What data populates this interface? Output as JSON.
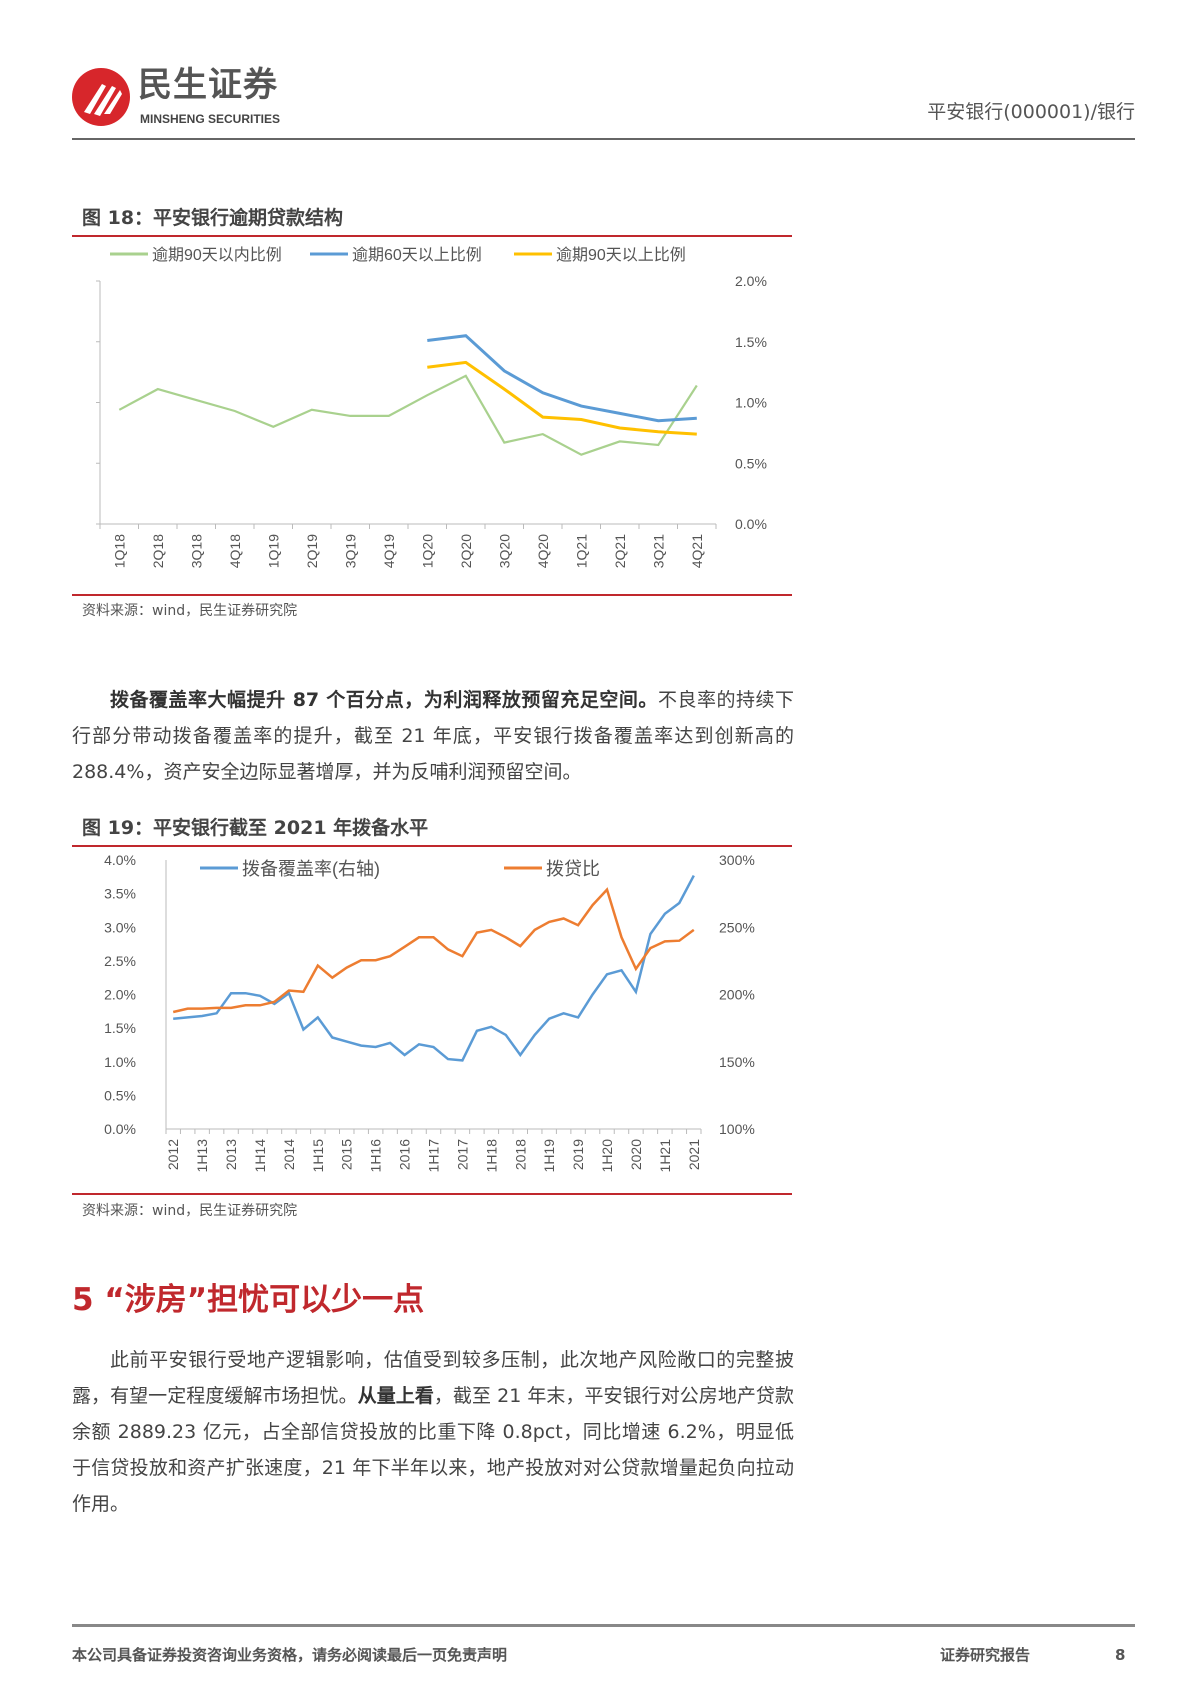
{
  "header": {
    "logo_cn": "民生证券",
    "logo_en": "MINSHENG SECURITIES",
    "doc_ref": "平安银行(000001)/银行"
  },
  "fig18": {
    "title": "图 18：平安银行逾期贷款结构",
    "source": "资料来源：wind，民生证券研究院"
  },
  "para1": {
    "bold": "拨备覆盖率大幅提升 87 个百分点，为利润释放预留充足空间。",
    "text": "不良率的持续下行部分带动拨备覆盖率的提升，截至 21 年底，平安银行拨备覆盖率达到创新高的 288.4%，资产安全边际显著增厚，并为反哺利润预留空间。"
  },
  "fig19": {
    "title": "图 19：平安银行截至 2021 年拨备水平",
    "source": "资料来源：wind，民生证券研究院"
  },
  "section": {
    "title": "5 “涉房”担忧可以少一点"
  },
  "para2": {
    "text1": "此前平安银行受地产逻辑影响，估值受到较多压制，此次地产风险敞口的完整披露，有望一定程度缓解市场担忧。",
    "bold": "从量上看",
    "text2": "，截至 21 年末，平安银行对公房地产贷款余额 2889.23 亿元，占全部信贷投放的比重下降 0.8pct，同比增速 6.2%，明显低于信贷投放和资产扩张速度，21 年下半年以来，地产投放对对公贷款增量起负向拉动作用。"
  },
  "footer": {
    "disclaimer": "本公司具备证券投资咨询业务资格，请务必阅读最后一页免责声明",
    "report_type": "证券研究报告",
    "page": "8"
  },
  "chart_data": [
    {
      "type": "line",
      "title": "图 18：平安银行逾期贷款结构",
      "categories": [
        "1Q18",
        "2Q18",
        "3Q18",
        "4Q18",
        "1Q19",
        "2Q19",
        "3Q19",
        "4Q19",
        "1Q20",
        "2Q20",
        "3Q20",
        "4Q20",
        "1Q21",
        "2Q21",
        "3Q21",
        "4Q21"
      ],
      "y_ticks": [
        "0.0%",
        "0.5%",
        "1.0%",
        "1.5%",
        "2.0%"
      ],
      "ylim": [
        0,
        2.0
      ],
      "y_axis": "right",
      "legend": "top",
      "series": [
        {
          "name": "逾期90天以内比例",
          "color": "#a9d18e",
          "values": [
            0.94,
            1.11,
            1.02,
            0.93,
            0.8,
            0.94,
            0.89,
            0.89,
            1.06,
            1.22,
            0.67,
            0.74,
            0.57,
            0.68,
            0.65,
            1.14
          ]
        },
        {
          "name": "逾期60天以上比例",
          "color": "#5b9bd5",
          "values": [
            null,
            null,
            null,
            null,
            null,
            null,
            null,
            null,
            1.51,
            1.55,
            1.26,
            1.08,
            0.97,
            0.91,
            0.85,
            0.87
          ]
        },
        {
          "name": "逾期90天以上比例",
          "color": "#ffc000",
          "values": [
            null,
            null,
            null,
            null,
            null,
            null,
            null,
            null,
            1.29,
            1.33,
            1.11,
            0.88,
            0.86,
            0.79,
            0.76,
            0.74
          ]
        }
      ]
    },
    {
      "type": "line",
      "title": "图 19：平安银行截至 2021 年拨备水平",
      "x_tick_labels": [
        "2012",
        "1H13",
        "2013",
        "1H14",
        "2014",
        "1H15",
        "2015",
        "1H16",
        "2016",
        "1H17",
        "2017",
        "1H18",
        "2018",
        "1H19",
        "2019",
        "1H20",
        "2020",
        "1H21",
        "2021"
      ],
      "y_left_ticks": [
        "0.0%",
        "0.5%",
        "1.0%",
        "1.5%",
        "2.0%",
        "2.5%",
        "3.0%",
        "3.5%",
        "4.0%"
      ],
      "ylim_left": [
        0,
        4.0
      ],
      "y_right_ticks": [
        "100%",
        "150%",
        "200%",
        "250%",
        "300%"
      ],
      "ylim_right": [
        100,
        300
      ],
      "legend": "top",
      "series": [
        {
          "name": "拨备覆盖率(右轴)",
          "axis": "right",
          "color": "#5b9bd5",
          "values": [
            182,
            183,
            184,
            186,
            201,
            201,
            199,
            193,
            201,
            174,
            183,
            168,
            165,
            162,
            161,
            164,
            155,
            163,
            161,
            152,
            151,
            173,
            176,
            170,
            155,
            170,
            182,
            186,
            183,
            200,
            215,
            218,
            202,
            245,
            260,
            268,
            288.4
          ]
        },
        {
          "name": "拨贷比",
          "axis": "left",
          "color": "#ed7d31",
          "values": [
            1.74,
            1.79,
            1.79,
            1.8,
            1.8,
            1.84,
            1.84,
            1.89,
            2.06,
            2.04,
            2.43,
            2.25,
            2.4,
            2.51,
            2.51,
            2.57,
            2.71,
            2.85,
            2.85,
            2.67,
            2.57,
            2.92,
            2.96,
            2.85,
            2.72,
            2.96,
            3.08,
            3.13,
            3.03,
            3.33,
            3.56,
            2.85,
            2.38,
            2.69,
            2.79,
            2.8,
            2.96
          ]
        }
      ]
    }
  ]
}
